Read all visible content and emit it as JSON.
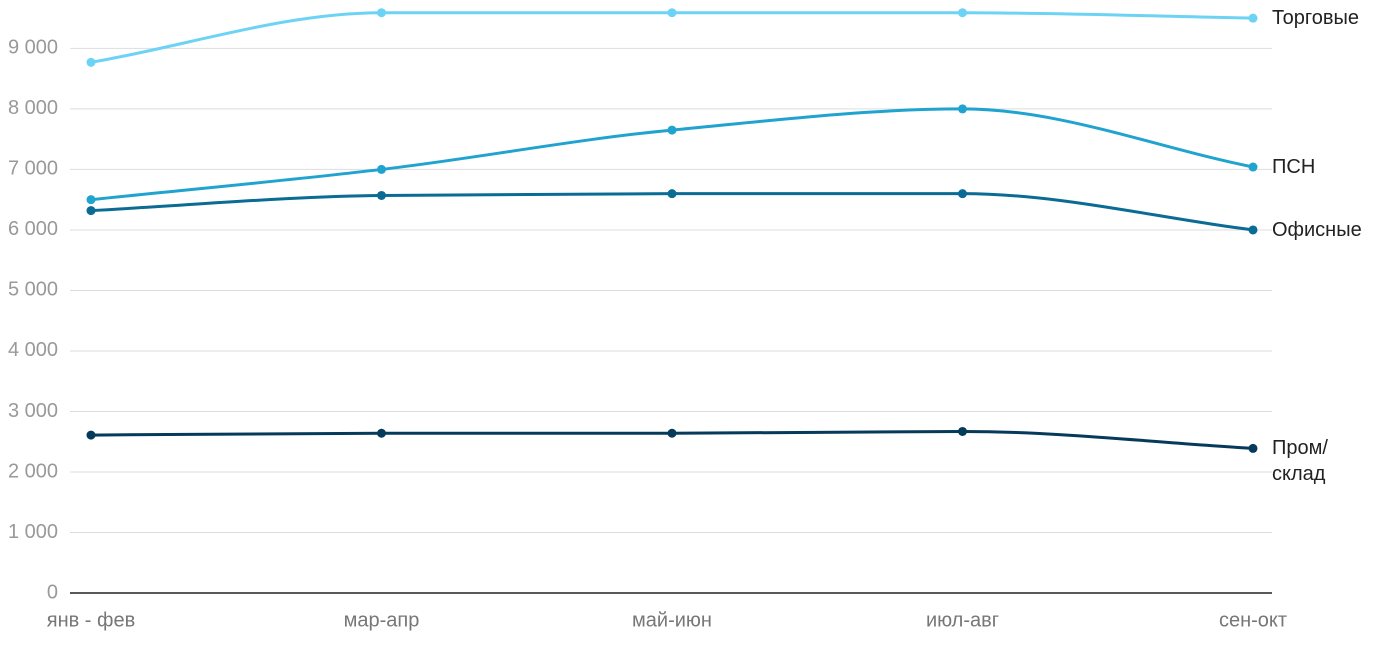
{
  "chart_data": {
    "type": "line",
    "categories": [
      "янв - фев",
      "мар-апр",
      "май-июн",
      "июл-авг",
      "сен-окт"
    ],
    "series": [
      {
        "name": "Торговые",
        "color": "#6dd3f5",
        "values": [
          8770,
          9590,
          9590,
          9590,
          9500
        ]
      },
      {
        "name": "ПСН",
        "color": "#21a3cf",
        "values": [
          6500,
          7000,
          7650,
          8000,
          7040
        ]
      },
      {
        "name": "Офисные",
        "color": "#0a6b94",
        "values": [
          6320,
          6570,
          6600,
          6600,
          6000
        ]
      },
      {
        "name": "Пром/\nсклад",
        "color": "#053a5a",
        "values": [
          2610,
          2640,
          2640,
          2670,
          2390
        ]
      }
    ],
    "ylim": [
      0,
      9800
    ],
    "yticks": [
      0,
      {
        "value": 1000,
        "label": "1 000"
      },
      {
        "value": 2000,
        "label": "2 000"
      },
      {
        "value": 3000,
        "label": "3 000"
      },
      {
        "value": 4000,
        "label": "4 000"
      },
      {
        "value": 5000,
        "label": "5 000"
      },
      {
        "value": 6000,
        "label": "6 000"
      },
      {
        "value": 7000,
        "label": "7 000"
      },
      {
        "value": 8000,
        "label": "8 000"
      },
      {
        "value": 9000,
        "label": "9 000"
      }
    ],
    "grid": true
  }
}
